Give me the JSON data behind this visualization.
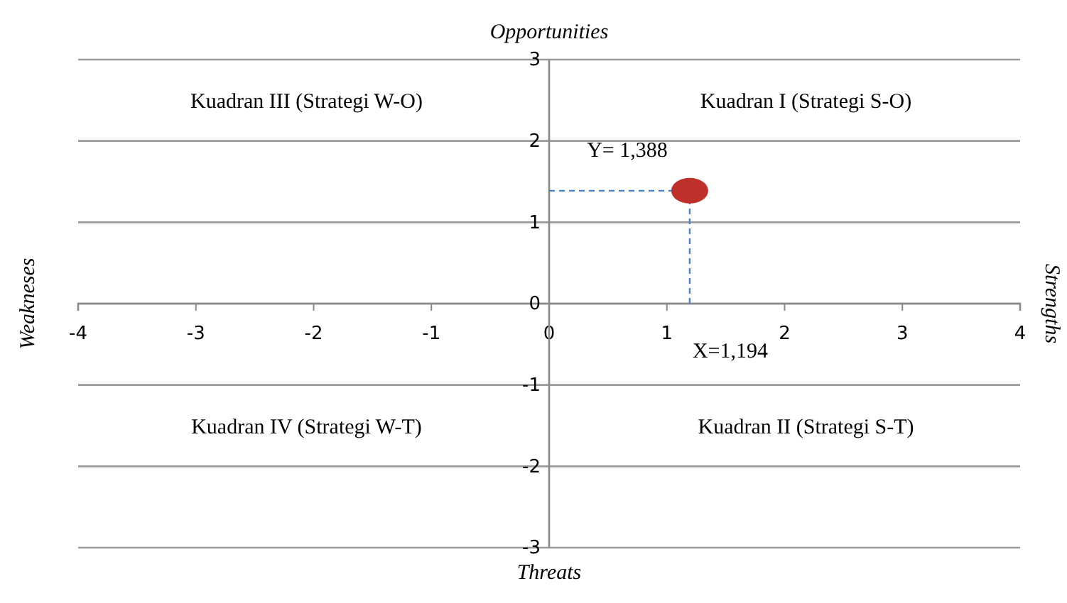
{
  "chart_data": {
    "type": "scatter",
    "x2label": "Opportunities",
    "xlabel": "Threats",
    "ylabel": "Weakneses",
    "y2label": "Strengths",
    "xlim": [
      -4,
      4
    ],
    "xticks": [
      -4,
      -3,
      -2,
      -1,
      0,
      1,
      2,
      3,
      4
    ],
    "ylim": [
      -3,
      3
    ],
    "yticks": [
      -3,
      -2,
      -1,
      0,
      1,
      2,
      3
    ],
    "grid": "y",
    "marker": "circle",
    "series": [
      {
        "color": "#c0302b",
        "x": [
          1.194
        ],
        "values": [
          1.388
        ]
      }
    ],
    "ref_lines": [
      {
        "axis": "x",
        "value": 1.194,
        "color": "#4a7fd0",
        "line_style": "dashed"
      },
      {
        "axis": "y",
        "value": 1.388,
        "color": "#4a7fd0",
        "line_style": "dashed"
      }
    ],
    "annotations": [
      "Kuadran III (Strategi W-O)",
      "Kuadran I (Strategi S-O)",
      "Kuadran IV (Strategi W-T)",
      "Kuadran II (Strategi S-T)",
      {
        "text": "Y= 1,388",
        "x": 0,
        "y": 1.388
      },
      {
        "text": "X=1,194",
        "x": 1.194,
        "y": 0
      }
    ]
  }
}
